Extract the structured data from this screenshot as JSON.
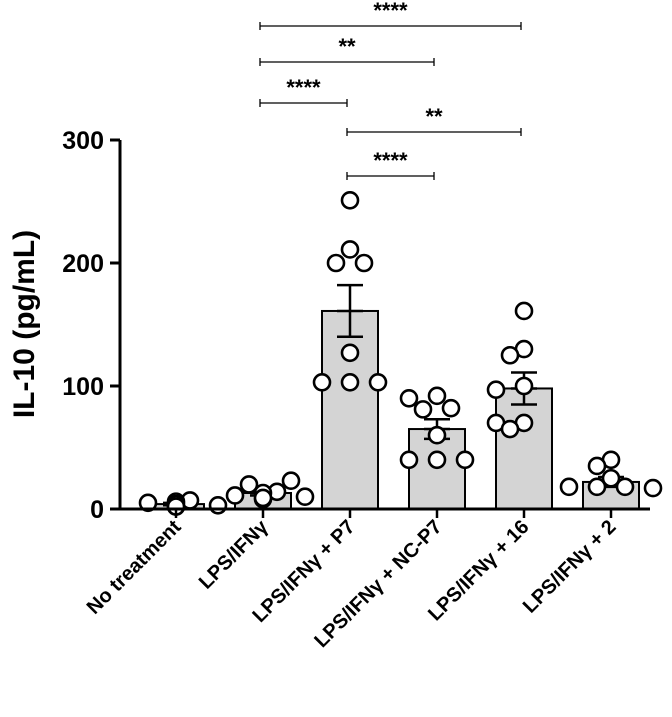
{
  "chart_data": {
    "type": "bar",
    "title": "",
    "xlabel": "",
    "ylabel": "IL-10 (pg/mL)",
    "ylim": [
      0,
      300
    ],
    "yticks": [
      0,
      100,
      200,
      300
    ],
    "grid": false,
    "error_bars": "SEM",
    "colors": {
      "bar_fill": "#d4d4d4",
      "bar_stroke": "#000000",
      "point_fill": "#ffffff",
      "point_stroke": "#000000"
    },
    "categories": [
      {
        "label": "No treatment",
        "mean": 4,
        "error": 1,
        "points": [
          2,
          5,
          7,
          3,
          6,
          4,
          2
        ]
      },
      {
        "label": "LPS/IFNγ",
        "mean": 13,
        "error": 2,
        "points": [
          8,
          11,
          20,
          14,
          23,
          10,
          13,
          9
        ]
      },
      {
        "label": "LPS/IFNγ + P7",
        "mean": 161,
        "error": 21,
        "points": [
          251,
          211,
          200,
          200,
          127,
          103,
          103,
          103
        ]
      },
      {
        "label": "LPS/IFNγ + NC-P7",
        "mean": 65,
        "error": 8,
        "points": [
          92,
          81,
          90,
          82,
          60,
          40,
          40,
          40
        ]
      },
      {
        "label": "LPS/IFNγ + 16",
        "mean": 98,
        "error": 13,
        "points": [
          161,
          130,
          125,
          100,
          97,
          70,
          70,
          65
        ]
      },
      {
        "label": "LPS/IFNγ + 2",
        "mean": 22,
        "error": 4,
        "points": [
          40,
          35,
          25,
          18,
          18,
          18,
          17
        ]
      }
    ],
    "significance": [
      {
        "from": 1,
        "to": 4,
        "label": "****"
      },
      {
        "from": 1,
        "to": 3,
        "label": "**"
      },
      {
        "from": 1,
        "to": 2,
        "label": "****"
      },
      {
        "from": 2,
        "to": 4,
        "label": "**"
      },
      {
        "from": 2,
        "to": 3,
        "label": "****"
      }
    ]
  }
}
